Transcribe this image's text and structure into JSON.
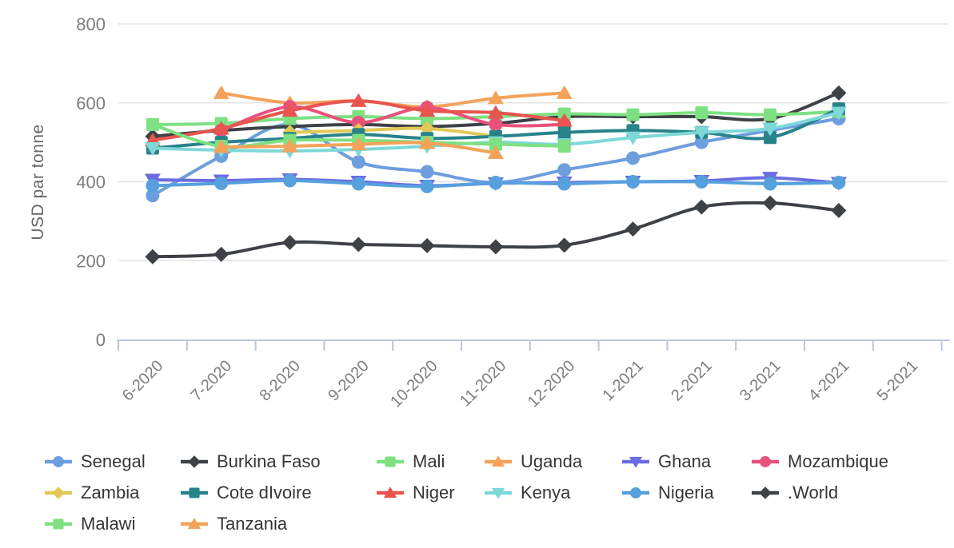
{
  "chart_data": {
    "type": "line",
    "title": "",
    "xlabel": "",
    "ylabel": "USD par tonne",
    "ylim": [
      0,
      800
    ],
    "yticks": [
      0,
      200,
      400,
      600,
      800
    ],
    "grid": true,
    "legend_position": "bottom",
    "categories": [
      "6-2020",
      "7-2020",
      "8-2020",
      "9-2020",
      "10-2020",
      "11-2020",
      "12-2020",
      "1-2021",
      "2-2021",
      "3-2021",
      "4-2021",
      "5-2021"
    ],
    "series": [
      {
        "name": "Senegal",
        "color": "#6d9ede",
        "marker": "circle",
        "values": [
          365,
          465,
          545,
          450,
          425,
          398,
          430,
          460,
          500,
          530,
          560,
          null
        ]
      },
      {
        "name": "Burkina Faso",
        "color": "#3e4247",
        "marker": "diamond",
        "values": [
          515,
          530,
          540,
          545,
          540,
          548,
          565,
          565,
          565,
          560,
          625,
          null
        ]
      },
      {
        "name": "Mali",
        "color": "#7ee081",
        "marker": "square",
        "values": [
          545,
          548,
          560,
          565,
          560,
          565,
          572,
          570,
          575,
          570,
          578,
          null
        ]
      },
      {
        "name": "Uganda",
        "color": "#f4a259",
        "marker": "triangle",
        "values": [
          null,
          625,
          600,
          605,
          590,
          612,
          625,
          null,
          null,
          null,
          null,
          null
        ]
      },
      {
        "name": "Ghana",
        "color": "#6c6ce2",
        "marker": "triangle-down",
        "values": [
          405,
          403,
          406,
          400,
          390,
          396,
          398,
          400,
          402,
          410,
          397,
          null
        ]
      },
      {
        "name": "Mozambique",
        "color": "#e8517c",
        "marker": "circle",
        "values": [
          null,
          530,
          590,
          550,
          588,
          545,
          545,
          null,
          null,
          null,
          null,
          null
        ]
      },
      {
        "name": "Zambia",
        "color": "#e2c857",
        "marker": "diamond",
        "values": [
          null,
          null,
          525,
          530,
          535,
          515,
          null,
          null,
          null,
          null,
          null,
          null
        ]
      },
      {
        "name": "Cote dIvoire",
        "color": "#27828a",
        "marker": "square",
        "values": [
          485,
          500,
          510,
          520,
          510,
          515,
          525,
          530,
          525,
          512,
          585,
          null
        ]
      },
      {
        "name": "Niger",
        "color": "#e8544f",
        "marker": "triangle",
        "values": [
          505,
          535,
          580,
          605,
          580,
          575,
          555,
          null,
          null,
          null,
          null,
          null
        ]
      },
      {
        "name": "Kenya",
        "color": "#7ed8d8",
        "marker": "triangle-down",
        "values": [
          485,
          480,
          478,
          482,
          490,
          500,
          495,
          512,
          525,
          535,
          575,
          null
        ]
      },
      {
        "name": "Nigeria",
        "color": "#56a0de",
        "marker": "circle",
        "values": [
          390,
          396,
          403,
          395,
          388,
          397,
          395,
          400,
          400,
          395,
          398,
          null
        ]
      },
      {
        "name": ".World",
        "color": "#3e4247",
        "marker": "diamond",
        "values": [
          210,
          216,
          246,
          241,
          238,
          235,
          239,
          280,
          336,
          346,
          327,
          null
        ]
      },
      {
        "name": "Malawi",
        "color": "#7ee081",
        "marker": "square",
        "values": [
          545,
          490,
          505,
          505,
          500,
          495,
          490,
          null,
          null,
          null,
          null,
          null
        ]
      },
      {
        "name": "Tanzania",
        "color": "#f4a259",
        "marker": "triangle",
        "values": [
          null,
          488,
          490,
          495,
          498,
          473,
          null,
          null,
          null,
          null,
          null,
          null
        ]
      }
    ],
    "style": {
      "grid_color": "#e4e4e4",
      "axis_line_color": "#b9c5de",
      "tick_text_color": "#7d7d7d",
      "axis_title_color": "#666666",
      "legend_text_color": "#363636",
      "background": "#ffffff"
    }
  }
}
